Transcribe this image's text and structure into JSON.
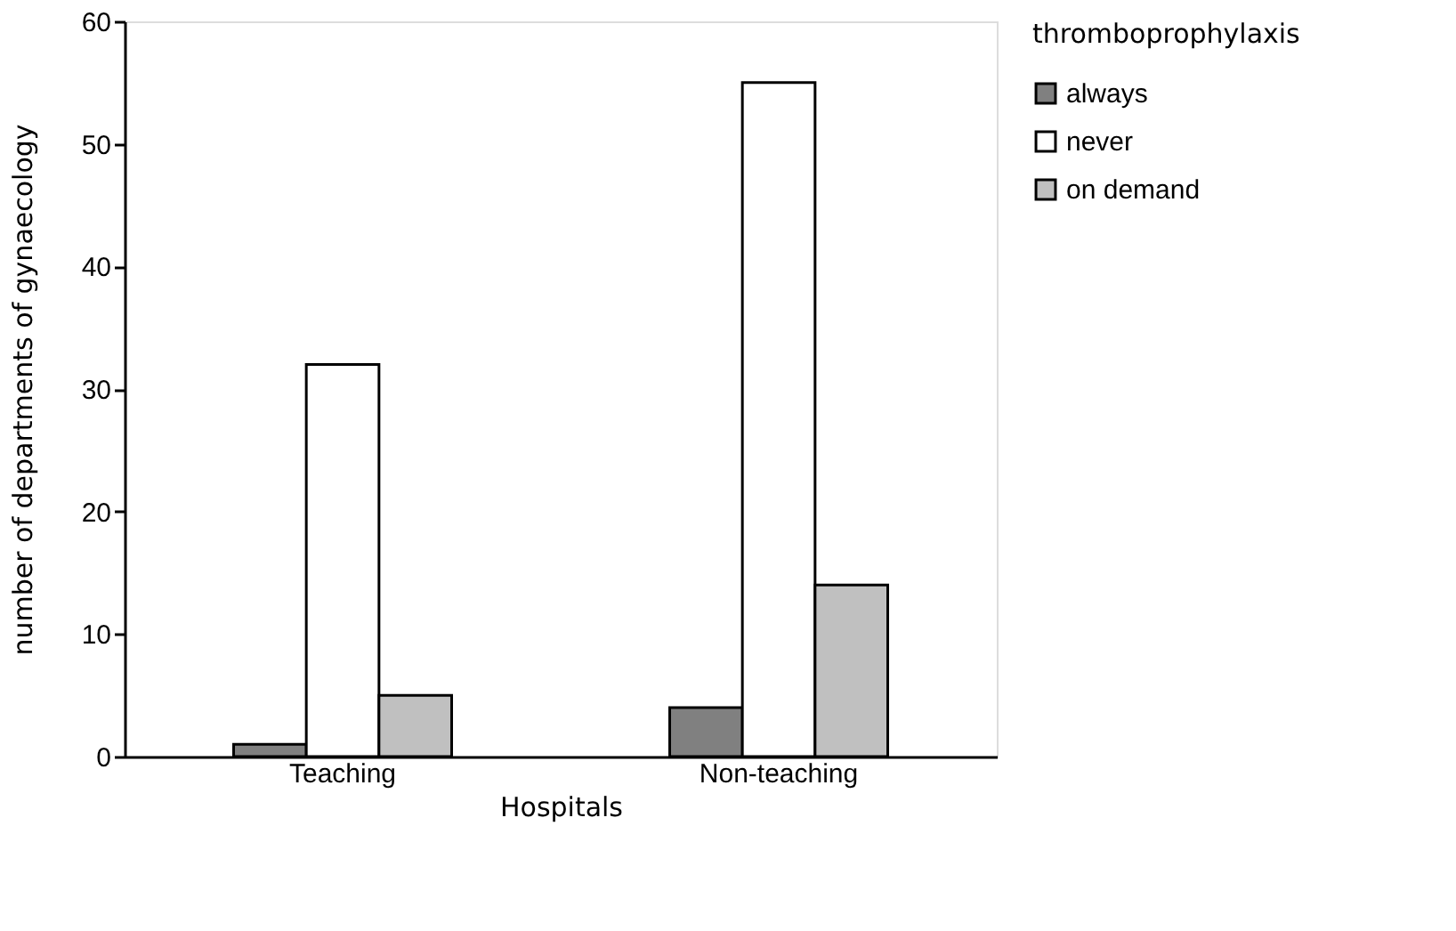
{
  "chart_data": {
    "type": "bar",
    "xlabel": "Hospitals",
    "ylabel": "number of departments of gynaecology",
    "legend_title": "thromboprophylaxis",
    "categories": [
      "Teaching",
      "Non-teaching"
    ],
    "series": [
      {
        "name": "always",
        "color": "#808080",
        "values": [
          1,
          4
        ]
      },
      {
        "name": "never",
        "color": "#ffffff",
        "values": [
          32,
          55
        ]
      },
      {
        "name": "on demand",
        "color": "#c0c0c0",
        "values": [
          5,
          14
        ]
      }
    ],
    "ylim": [
      0,
      60
    ],
    "yticks": [
      0,
      10,
      20,
      30,
      40,
      50,
      60
    ],
    "grid": false,
    "legend": "right"
  }
}
